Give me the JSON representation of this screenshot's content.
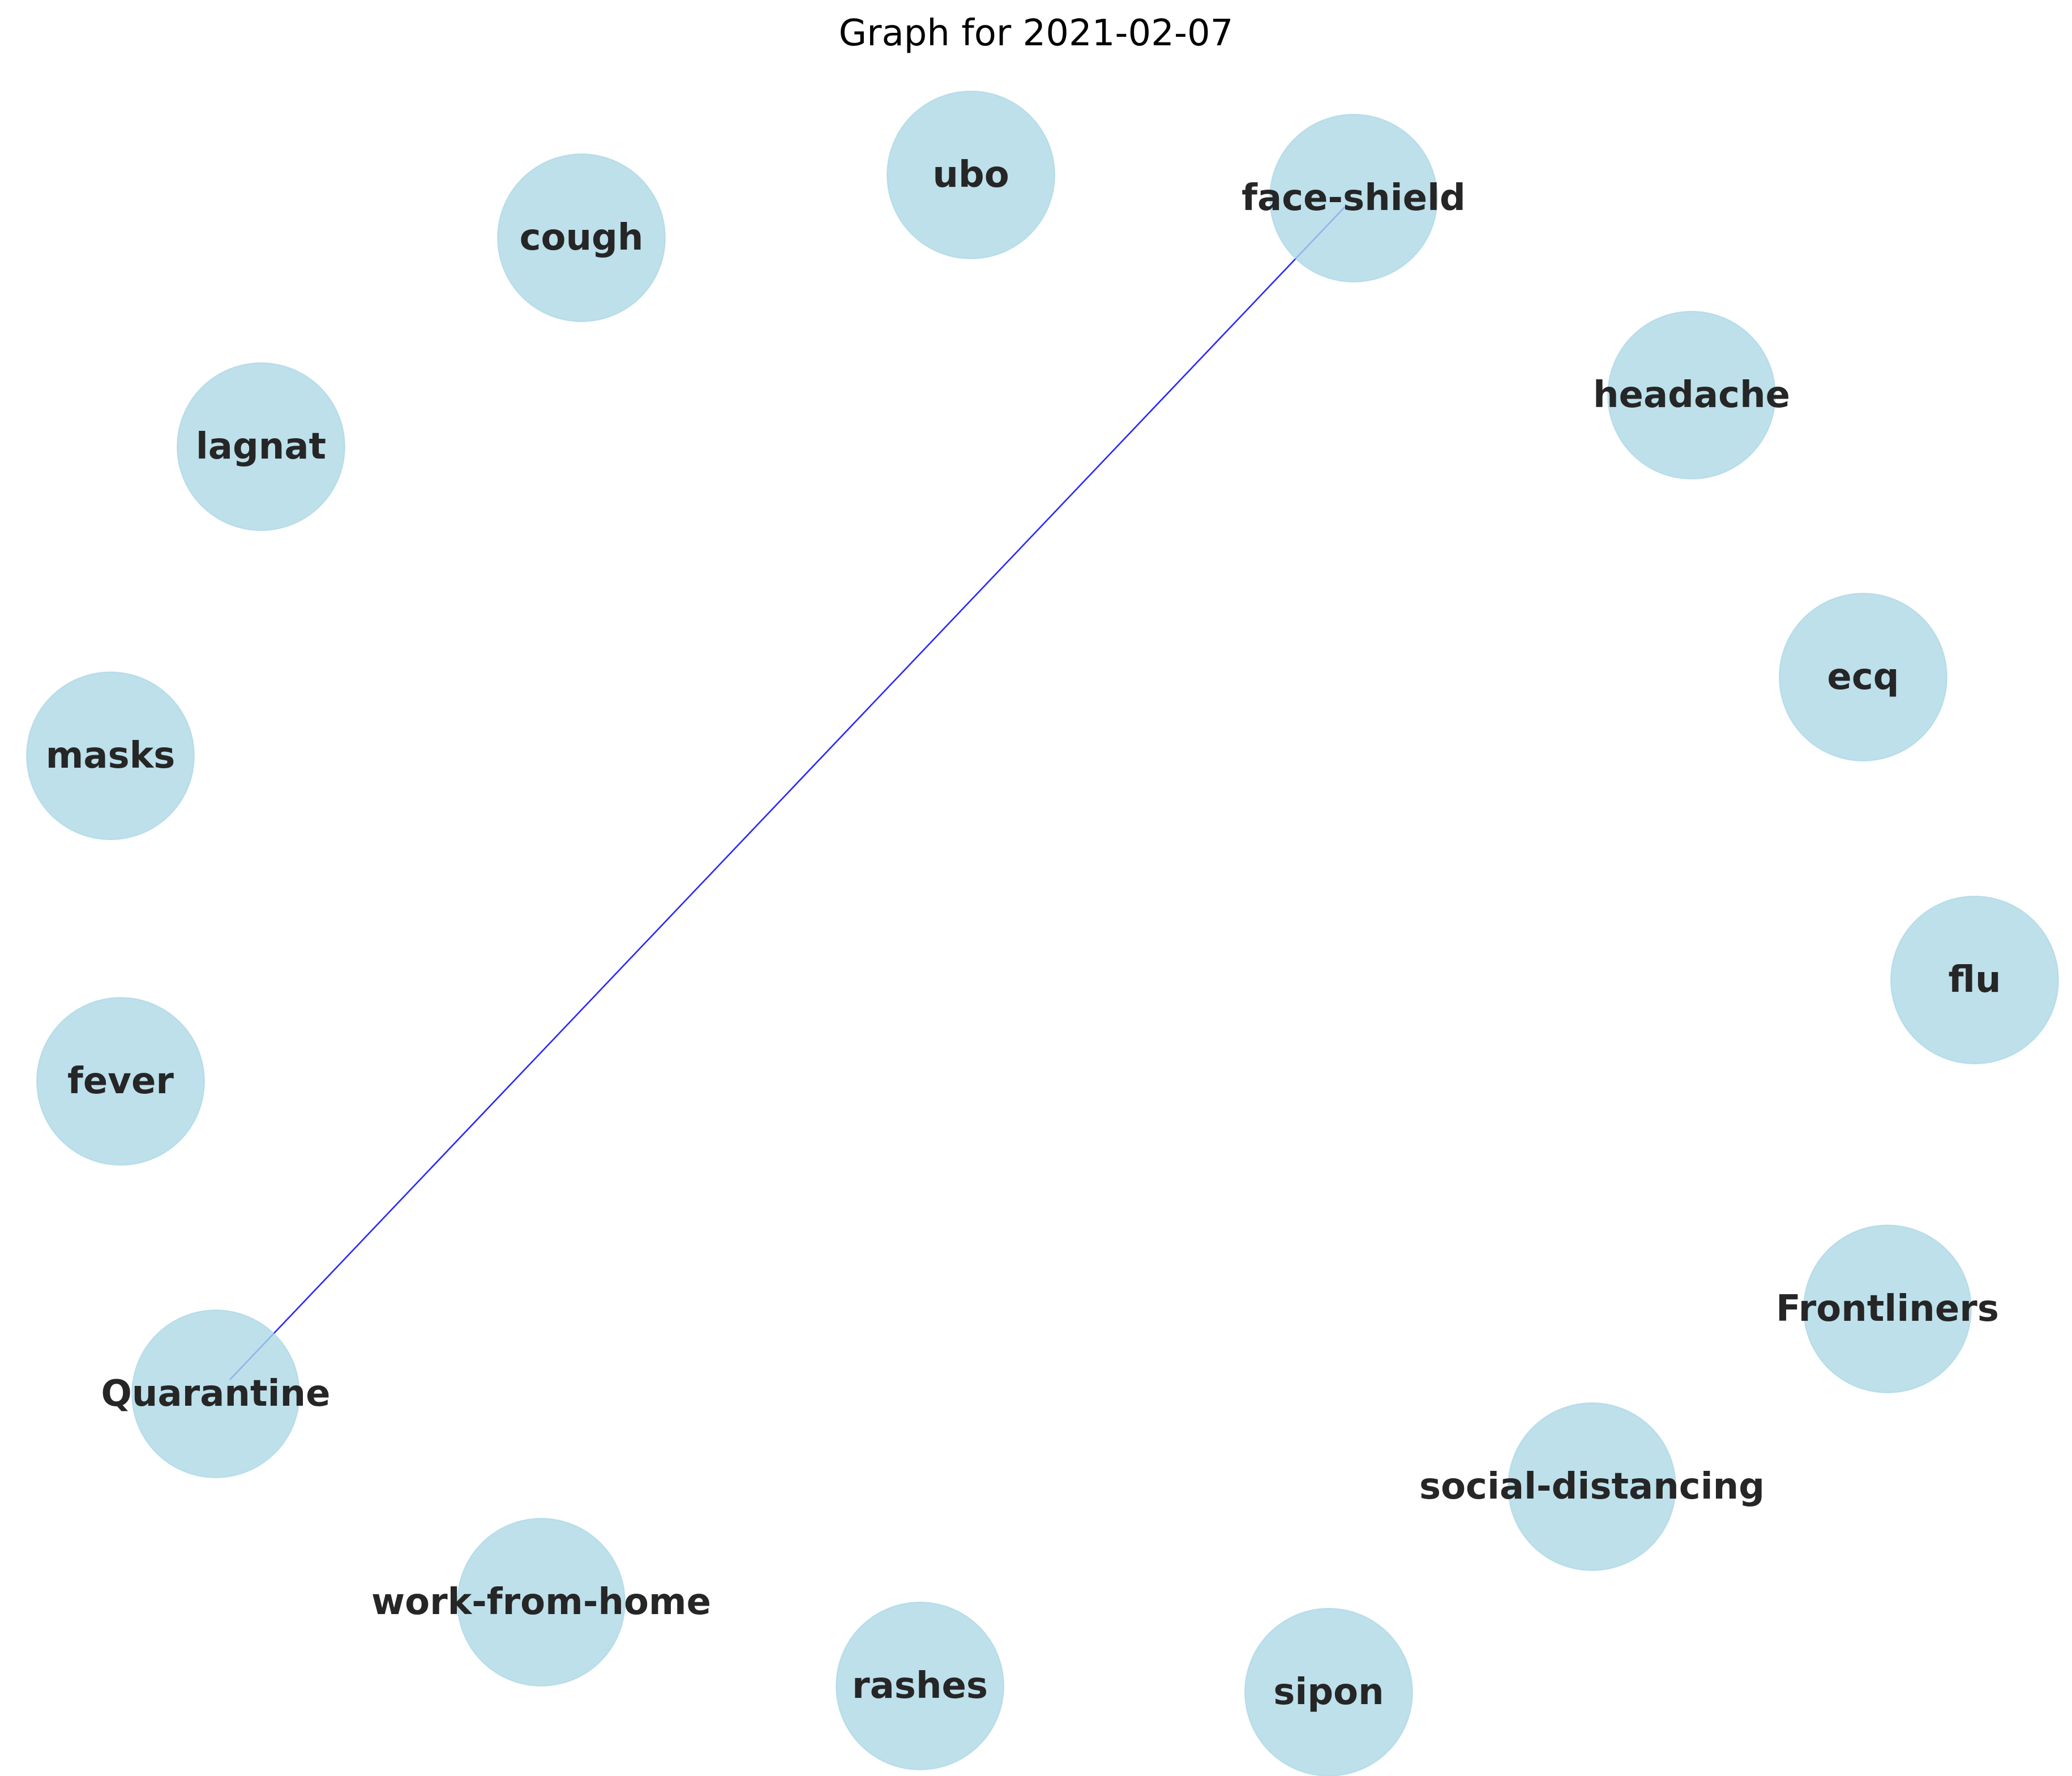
{
  "title": "Graph for 2021-02-07",
  "colors": {
    "node_fill": "#add8e6",
    "edge": "#0000ff",
    "label": "#262626",
    "background": "#ffffff"
  },
  "nodes": [
    {
      "id": "ubo",
      "label": "ubo"
    },
    {
      "id": "face-shield",
      "label": "face-shield"
    },
    {
      "id": "cough",
      "label": "cough"
    },
    {
      "id": "headache",
      "label": "headache"
    },
    {
      "id": "lagnat",
      "label": "lagnat"
    },
    {
      "id": "ecq",
      "label": "ecq"
    },
    {
      "id": "masks",
      "label": "masks"
    },
    {
      "id": "flu",
      "label": "flu"
    },
    {
      "id": "fever",
      "label": "fever"
    },
    {
      "id": "Frontliners",
      "label": "Frontliners"
    },
    {
      "id": "Quarantine",
      "label": "Quarantine"
    },
    {
      "id": "social-distancing",
      "label": "social-distancing"
    },
    {
      "id": "work-from-home",
      "label": "work-from-home"
    },
    {
      "id": "rashes",
      "label": "rashes"
    },
    {
      "id": "sipon",
      "label": "sipon"
    }
  ],
  "edges": [
    {
      "source": "face-shield",
      "target": "Quarantine"
    }
  ]
}
